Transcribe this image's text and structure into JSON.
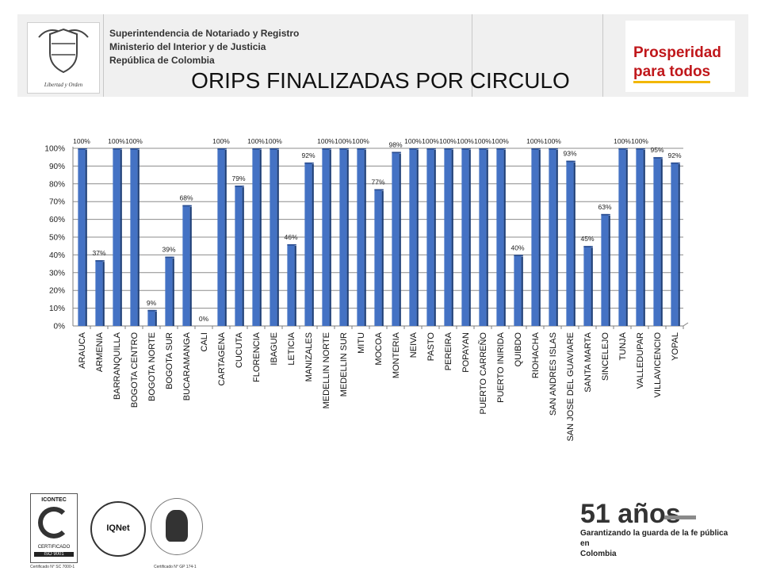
{
  "header": {
    "org_line1": "Superintendencia de Notariado y Registro",
    "org_line2": "Ministerio del Interior y de Justicia",
    "org_line3": "República de Colombia",
    "shield_motto": "Libertad y Orden",
    "brand_line1": "Prosperidad",
    "brand_line2": "para todos"
  },
  "title": "ORIPS FINALIZADAS POR CIRCULO",
  "chart_data": {
    "type": "bar",
    "title": "ORIPS FINALIZADAS POR CIRCULO",
    "xlabel": "",
    "ylabel": "",
    "ylim": [
      0,
      1
    ],
    "grid": true,
    "bar_color": "#4472c4",
    "y_ticks": [
      "0%",
      "10%",
      "20%",
      "30%",
      "40%",
      "50%",
      "60%",
      "70%",
      "80%",
      "90%",
      "100%"
    ],
    "categories": [
      "ARAUCA",
      "ARMENIA",
      "BARRANQUILLA",
      "BOGOTA CENTRO",
      "BOGOTA NORTE",
      "BOGOTA SUR",
      "BUCARAMANGA",
      "CALI",
      "CARTAGENA",
      "CUCUTA",
      "FLORENCIA",
      "IBAGUE",
      "LETICIA",
      "MANIZALES",
      "MEDELLIN NORTE",
      "MEDELLIN SUR",
      "MITU",
      "MOCOA",
      "MONTERIA",
      "NEIVA",
      "PASTO",
      "PEREIRA",
      "POPAYAN",
      "PUERTO CARREÑO",
      "PUERTO INIRIDA",
      "QUIBDO",
      "RIOHACHA",
      "SAN ANDRES ISLAS",
      "SAN JOSE DEL GUAVIARE",
      "SANTA MARTA",
      "SINCELEJO",
      "TUNJA",
      "VALLEDUPAR",
      "VILLAVICENCIO",
      "YOPAL"
    ],
    "values": [
      1.0,
      0.37,
      1.0,
      1.0,
      0.09,
      0.39,
      0.68,
      0.0,
      1.0,
      0.79,
      1.0,
      1.0,
      0.46,
      0.92,
      1.0,
      1.0,
      1.0,
      0.77,
      0.98,
      1.0,
      1.0,
      1.0,
      1.0,
      1.0,
      1.0,
      0.4,
      1.0,
      1.0,
      0.93,
      0.45,
      0.63,
      1.0,
      1.0,
      0.95,
      0.92
    ],
    "data_labels": [
      "100%",
      "37%",
      "100%",
      "100%",
      "9%",
      "39%",
      "68%",
      "0%",
      "100%",
      "79%",
      "100%",
      "100%",
      "46%",
      "92%",
      "100%",
      "100%",
      "100%",
      "77%",
      "98%",
      "100%",
      "100%",
      "100%",
      "100%",
      "100%",
      "100%",
      "40%",
      "100%",
      "100%",
      "93%",
      "45%",
      "63%",
      "100%",
      "100%",
      "95%",
      "92%"
    ]
  },
  "footer": {
    "cert1_title": "ICONTEC",
    "cert1_caption": "CERTIFICADO",
    "cert1_standard": "ISO 9001",
    "cert2_name": "IQNet",
    "cert_caption_left": "Certificado N° SC 7000-1",
    "cert_caption_right": "Certificado N° GP 174-1",
    "anniversary": "51 años",
    "tagline1": "Garantizando la guarda de la fe pública en",
    "tagline2": "Colombia"
  }
}
